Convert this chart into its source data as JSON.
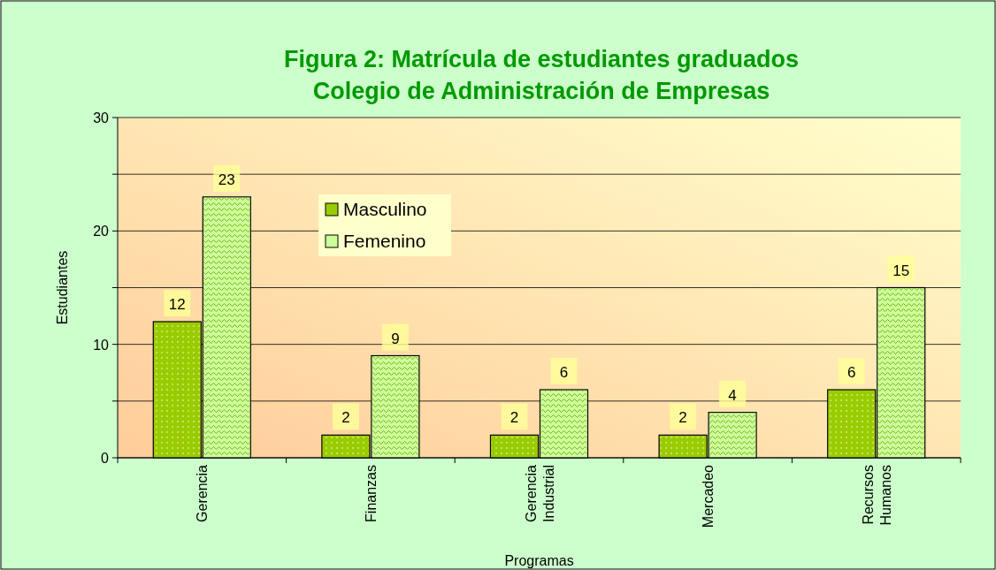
{
  "chart_data": {
    "type": "bar",
    "title": "Figura 2: Matrícula de estudiantes graduados",
    "subtitle": "Colegio de Administración de Empresas",
    "xlabel": "Programas",
    "ylabel": "Estudiantes",
    "categories": [
      "Gerencia",
      "Finanzas",
      "Gerencia Industrial",
      "Mercadeo",
      "Recursos Humanos"
    ],
    "series": [
      {
        "name": "Masculino",
        "color": "#99cc00",
        "values": [
          12,
          2,
          2,
          2,
          6
        ]
      },
      {
        "name": "Femenino",
        "color": "#ccff99",
        "values": [
          23,
          9,
          6,
          4,
          15
        ]
      }
    ],
    "ylim": [
      0,
      30
    ],
    "yticks": [
      0,
      {
        "value": 5,
        "label": null
      },
      10,
      {
        "value": 15,
        "label": null
      },
      20,
      {
        "value": 25,
        "label": null
      },
      30
    ],
    "grid": "y",
    "legend": "top left",
    "data_labels": true
  }
}
